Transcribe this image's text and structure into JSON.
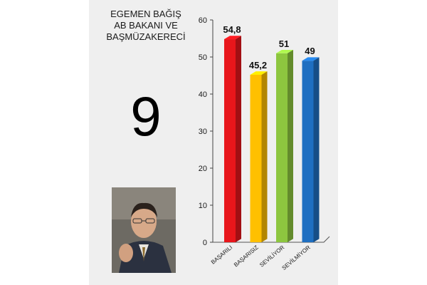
{
  "caption": {
    "lines": [
      "EGEMEN BAĞIŞ",
      "AB BAKANI VE",
      "BAŞMÜZAKERECİ"
    ],
    "rank": "9"
  },
  "chart_data": {
    "type": "bar",
    "title": "",
    "xlabel": "",
    "ylabel": "",
    "ylim": [
      0,
      60
    ],
    "yticks": [
      "0",
      "10",
      "20",
      "30",
      "40",
      "50",
      "60"
    ],
    "categories": [
      "BAŞARILI",
      "BAŞARISIZ",
      "SEVİLİYOR",
      "SEVİLMİYOR"
    ],
    "values": [
      54.8,
      45.2,
      51,
      49
    ],
    "value_labels": [
      "54,8",
      "45,2",
      "51",
      "49"
    ],
    "colors": [
      "#e8161b",
      "#ffc000",
      "#8dc63f",
      "#1f6fc1"
    ],
    "grid": false,
    "legend": "none"
  }
}
